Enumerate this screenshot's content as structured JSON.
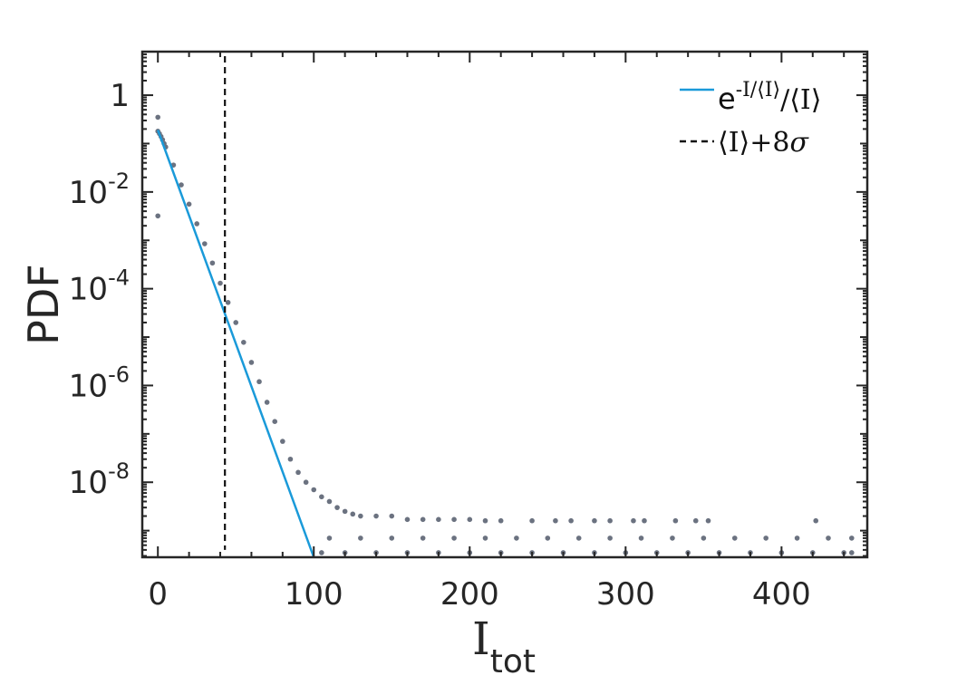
{
  "chart_data": {
    "type": "scatter",
    "title": "",
    "xlabel": {
      "main": "I",
      "sub": "tot"
    },
    "ylabel": "PDF",
    "xlim": [
      -10,
      455
    ],
    "ylim_log10": [
      -9.55,
      0.9
    ],
    "y_scale": "log",
    "grid": false,
    "legend_position": "top-right",
    "x_ticks": [
      {
        "value": 0,
        "label": "0"
      },
      {
        "value": 100,
        "label": "100"
      },
      {
        "value": 200,
        "label": "200"
      },
      {
        "value": 300,
        "label": "300"
      },
      {
        "value": 400,
        "label": "400"
      }
    ],
    "y_ticks": [
      {
        "log10": 0,
        "base": "1",
        "exp": ""
      },
      {
        "log10": -2,
        "base": "10",
        "exp": "-2"
      },
      {
        "log10": -4,
        "base": "10",
        "exp": "-4"
      },
      {
        "log10": -6,
        "base": "10",
        "exp": "-6"
      },
      {
        "log10": -8,
        "base": "10",
        "exp": "-8"
      }
    ],
    "series": [
      {
        "kind": "scatter",
        "color": "#6b7280",
        "points": [
          [
            0,
            0.35
          ],
          [
            0,
            0.18
          ],
          [
            0,
            0.0032
          ],
          [
            1,
            0.16
          ],
          [
            2,
            0.14
          ],
          [
            3,
            0.12
          ],
          [
            4,
            0.1
          ],
          [
            5,
            0.085
          ],
          [
            10,
            0.036
          ],
          [
            15,
            0.014
          ],
          [
            20,
            0.0056
          ],
          [
            25,
            0.0022
          ],
          [
            30,
            0.00085
          ],
          [
            35,
            0.00034
          ],
          [
            40,
            0.00013
          ],
          [
            45,
            5.2e-05
          ],
          [
            50,
            2e-05
          ],
          [
            55,
            7.8e-06
          ],
          [
            60,
            3e-06
          ],
          [
            65,
            1.2e-06
          ],
          [
            70,
            4.5e-07
          ],
          [
            75,
            1.8e-07
          ],
          [
            80,
            7e-08
          ],
          [
            85,
            3e-08
          ],
          [
            90,
            1.6e-08
          ],
          [
            95,
            1e-08
          ],
          [
            100,
            7e-09
          ],
          [
            105,
            5e-09
          ],
          [
            110,
            4e-09
          ],
          [
            115,
            3e-09
          ],
          [
            120,
            2.5e-09
          ],
          [
            125,
            2.2e-09
          ],
          [
            130,
            2e-09
          ],
          [
            140,
            2e-09
          ],
          [
            150,
            2e-09
          ],
          [
            160,
            1.7e-09
          ],
          [
            170,
            1.7e-09
          ],
          [
            180,
            1.7e-09
          ],
          [
            190,
            1.7e-09
          ],
          [
            200,
            1.7e-09
          ],
          [
            210,
            1.6e-09
          ],
          [
            220,
            1.6e-09
          ],
          [
            240,
            1.6e-09
          ],
          [
            255,
            1.6e-09
          ],
          [
            265,
            1.6e-09
          ],
          [
            280,
            1.6e-09
          ],
          [
            290,
            1.6e-09
          ],
          [
            305,
            1.6e-09
          ],
          [
            312,
            1.6e-09
          ],
          [
            332,
            1.6e-09
          ],
          [
            345,
            1.6e-09
          ],
          [
            353,
            1.6e-09
          ],
          [
            422,
            1.6e-09
          ],
          [
            110,
            7e-10
          ],
          [
            130,
            7e-10
          ],
          [
            150,
            7e-10
          ],
          [
            170,
            7e-10
          ],
          [
            190,
            7e-10
          ],
          [
            210,
            7e-10
          ],
          [
            230,
            7e-10
          ],
          [
            250,
            7e-10
          ],
          [
            270,
            7e-10
          ],
          [
            290,
            7e-10
          ],
          [
            310,
            7e-10
          ],
          [
            330,
            7e-10
          ],
          [
            350,
            7e-10
          ],
          [
            370,
            7e-10
          ],
          [
            390,
            7e-10
          ],
          [
            410,
            7e-10
          ],
          [
            430,
            7e-10
          ],
          [
            445,
            7e-10
          ],
          [
            105,
            3.5e-10
          ],
          [
            120,
            3.5e-10
          ],
          [
            140,
            3.5e-10
          ],
          [
            160,
            3.5e-10
          ],
          [
            180,
            3.5e-10
          ],
          [
            200,
            3.5e-10
          ],
          [
            220,
            3.5e-10
          ],
          [
            240,
            3.5e-10
          ],
          [
            260,
            3.5e-10
          ],
          [
            280,
            3.5e-10
          ],
          [
            300,
            3.5e-10
          ],
          [
            320,
            3.5e-10
          ],
          [
            340,
            3.5e-10
          ],
          [
            360,
            3.5e-10
          ],
          [
            380,
            3.5e-10
          ],
          [
            400,
            3.5e-10
          ],
          [
            420,
            3.5e-10
          ],
          [
            440,
            3.5e-10
          ],
          [
            445,
            3.5e-10
          ]
        ]
      },
      {
        "kind": "line",
        "color": "#1a9ad9",
        "legend_label": {
          "base": "e",
          "sup1": "-I/",
          "sup2": "⟨I⟩",
          "rest": "/⟨I⟩"
        },
        "points": [
          [
            0,
            0.19
          ],
          [
            100,
            2.5e-10
          ]
        ]
      },
      {
        "kind": "vline",
        "color": "#111111",
        "dash": true,
        "legend_label": {
          "text1": "⟨I⟩+8",
          "sigma": "σ"
        },
        "x": 43
      }
    ]
  }
}
